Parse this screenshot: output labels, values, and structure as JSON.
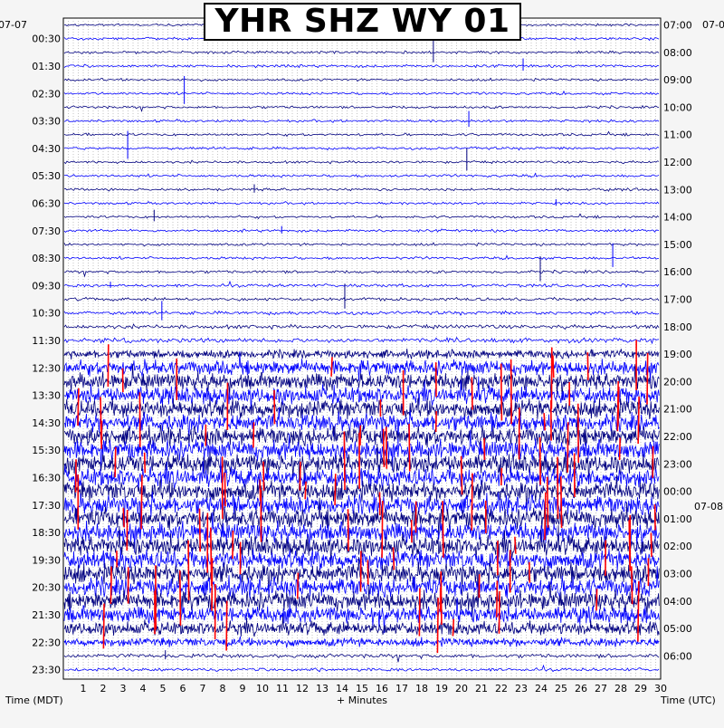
{
  "chart_data": {
    "type": "line",
    "title": "YHR SHZ WY 01",
    "left_date": "07-07",
    "right_date_top": "07-0",
    "right_date_mid": "07-08",
    "left_ticks": [
      "00:30",
      "01:30",
      "02:30",
      "03:30",
      "04:30",
      "05:30",
      "06:30",
      "07:30",
      "08:30",
      "09:30",
      "10:30",
      "11:30",
      "12:30",
      "13:30",
      "14:30",
      "15:30",
      "16:30",
      "17:30",
      "18:30",
      "19:30",
      "20:30",
      "21:30",
      "22:30",
      "23:30"
    ],
    "right_ticks": [
      "07:00",
      "08:00",
      "09:00",
      "10:00",
      "11:00",
      "12:00",
      "13:00",
      "14:00",
      "15:00",
      "16:00",
      "17:00",
      "18:00",
      "19:00",
      "20:00",
      "21:00",
      "22:00",
      "23:00",
      "00:00",
      "01:00",
      "02:00",
      "03:00",
      "04:00",
      "05:00",
      "06:00"
    ],
    "x_ticks": [
      "1",
      "2",
      "3",
      "4",
      "5",
      "6",
      "7",
      "8",
      "9",
      "10",
      "11",
      "12",
      "13",
      "14",
      "15",
      "16",
      "17",
      "18",
      "19",
      "20",
      "21",
      "22",
      "23",
      "24",
      "25",
      "26",
      "27",
      "28",
      "29",
      "30"
    ],
    "xlabel": "+ Minutes",
    "ylabel_left": "Time (MDT)",
    "ylabel_right": "Time (UTC)",
    "xlim": [
      0,
      30
    ],
    "trace_count": 48,
    "trace_colors": [
      "#000080",
      "#0000ff"
    ],
    "clip_color": "#ff0000",
    "grid": true,
    "activity_level": [
      0.05,
      0.06,
      0.06,
      0.07,
      0.05,
      0.06,
      0.06,
      0.06,
      0.06,
      0.07,
      0.06,
      0.07,
      0.07,
      0.06,
      0.06,
      0.07,
      0.06,
      0.07,
      0.08,
      0.09,
      0.1,
      0.12,
      0.14,
      0.18,
      0.4,
      0.75,
      0.85,
      0.9,
      0.95,
      0.95,
      0.95,
      1.0,
      1.0,
      1.0,
      1.0,
      1.0,
      1.0,
      1.0,
      1.0,
      1.0,
      1.0,
      1.0,
      0.95,
      0.85,
      0.7,
      0.4,
      0.15,
      0.1
    ]
  }
}
